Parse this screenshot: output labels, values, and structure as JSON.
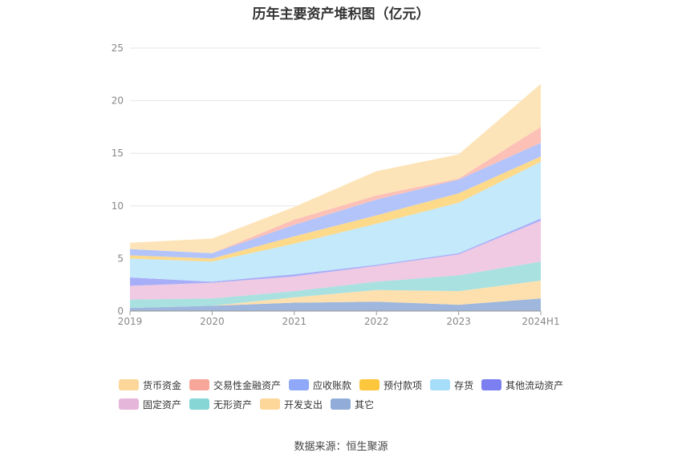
{
  "title": "历年主要资产堆积图（亿元）",
  "source": "数据来源：恒生聚源",
  "chart_data": {
    "type": "area",
    "stacked": true,
    "title": "历年主要资产堆积图（亿元）",
    "categories": [
      "2019",
      "2020",
      "2021",
      "2022",
      "2023",
      "2024H1"
    ],
    "ylim": [
      0,
      25
    ],
    "yticks": [
      0,
      5,
      10,
      15,
      20,
      25
    ],
    "grid": true,
    "legend_position": "bottom",
    "series": [
      {
        "name": "其它",
        "color": "#9fb7dd",
        "values": [
          0.3,
          0.5,
          0.8,
          0.9,
          0.6,
          1.2
        ]
      },
      {
        "name": "开发支出",
        "color": "#fde0ae",
        "values": [
          0.0,
          0.0,
          0.5,
          1.1,
          1.3,
          1.7
        ]
      },
      {
        "name": "无形资产",
        "color": "#a9e1e1",
        "values": [
          0.8,
          0.7,
          0.6,
          0.8,
          1.5,
          1.8
        ]
      },
      {
        "name": "固定资产",
        "color": "#f0c9e2",
        "values": [
          1.3,
          1.5,
          1.4,
          1.5,
          2.0,
          3.9
        ]
      },
      {
        "name": "其他流动资产",
        "color": "#a7aef8",
        "values": [
          0.8,
          0.1,
          0.2,
          0.1,
          0.1,
          0.2
        ]
      },
      {
        "name": "存货",
        "color": "#c4e9fa",
        "values": [
          1.8,
          1.9,
          2.9,
          3.9,
          4.8,
          5.4
        ]
      },
      {
        "name": "预付款项",
        "color": "#fdd98a",
        "values": [
          0.3,
          0.3,
          0.7,
          0.8,
          0.9,
          0.5
        ]
      },
      {
        "name": "应收账款",
        "color": "#b3c4fb",
        "values": [
          0.6,
          0.5,
          1.1,
          1.5,
          1.3,
          1.3
        ]
      },
      {
        "name": "交易性金融资产",
        "color": "#fcc0b6",
        "values": [
          0.0,
          0.0,
          0.5,
          0.4,
          0.1,
          1.5
        ]
      },
      {
        "name": "货币资金",
        "color": "#fde4b8",
        "values": [
          0.6,
          1.4,
          1.2,
          2.3,
          2.3,
          4.1
        ]
      }
    ]
  },
  "legend": {
    "items": [
      {
        "label": "货币资金",
        "color": "#fdd79a"
      },
      {
        "label": "交易性金融资产",
        "color": "#f7a79a"
      },
      {
        "label": "应收账款",
        "color": "#8fa9f8"
      },
      {
        "label": "预付款项",
        "color": "#fcc63d"
      },
      {
        "label": "存货",
        "color": "#a6def9"
      },
      {
        "label": "其他流动资产",
        "color": "#7b7ff0"
      },
      {
        "label": "固定资产",
        "color": "#e6b6da"
      },
      {
        "label": "无形资产",
        "color": "#86d6d6"
      },
      {
        "label": "开发支出",
        "color": "#fdd79a"
      },
      {
        "label": "其它",
        "color": "#91acd9"
      }
    ]
  }
}
